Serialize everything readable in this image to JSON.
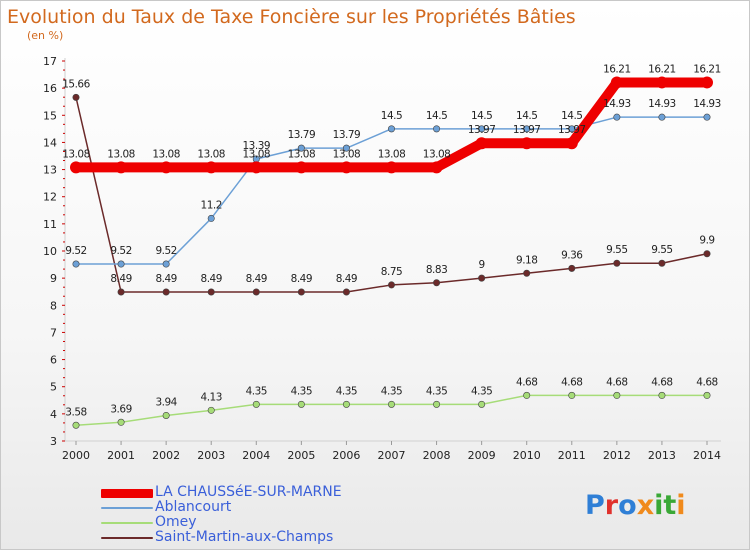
{
  "header": {
    "title": "Evolution du Taux de Taxe Foncière sur les Propriétés Bâties",
    "unit": "(en %)"
  },
  "logo": {
    "letters": [
      "P",
      "r",
      "o",
      "x",
      "i",
      "t",
      "i"
    ],
    "colors": [
      "#2f7fd6",
      "#e0312c",
      "#2f7fd6",
      "#f08a1c",
      "#3aa836",
      "#3aa836",
      "#f08a1c"
    ]
  },
  "chart_data": {
    "type": "line",
    "title": "Evolution du Taux de Taxe Foncière sur les Propriétés Bâties",
    "ylabel": "(en %)",
    "xlabel": "",
    "ylim": [
      3,
      17
    ],
    "yticks": [
      3,
      4,
      5,
      6,
      7,
      8,
      9,
      10,
      11,
      12,
      13,
      14,
      15,
      16,
      17
    ],
    "categories": [
      "2000",
      "2001",
      "2002",
      "2003",
      "2004",
      "2005",
      "2006",
      "2007",
      "2008",
      "2009",
      "2010",
      "2011",
      "2012",
      "2013",
      "2014"
    ],
    "legend_position": "bottom-left",
    "grid": false,
    "series": [
      {
        "name": "LA CHAUSSéE-SUR-MARNE",
        "color": "#ee0000",
        "values": [
          13.08,
          13.08,
          13.08,
          13.08,
          13.08,
          13.08,
          13.08,
          13.08,
          13.08,
          13.97,
          13.97,
          13.97,
          16.21,
          16.21,
          16.21
        ],
        "labels": [
          "13.08",
          "13.08",
          "13.08",
          "13.08",
          "13.08",
          "13.08",
          "13.08",
          "13.08",
          "13.08",
          "13.97",
          "13.97",
          "13.97",
          "16.21",
          "16.21",
          "16.21"
        ]
      },
      {
        "name": "Ablancourt",
        "color": "#6ca0d6",
        "values": [
          9.52,
          9.52,
          9.52,
          11.2,
          13.39,
          13.79,
          13.79,
          14.5,
          14.5,
          14.5,
          14.5,
          14.5,
          14.93,
          14.93,
          14.93
        ],
        "labels": [
          "9.52",
          "9.52",
          "9.52",
          "11.2",
          "13.39",
          "13.79",
          "13.79",
          "14.5",
          "14.5",
          "14.5",
          "14.5",
          "14.5",
          "14.93",
          "14.93",
          "14.93"
        ]
      },
      {
        "name": "Omey",
        "color": "#a6dc78",
        "values": [
          3.58,
          3.69,
          3.94,
          4.13,
          4.35,
          4.35,
          4.35,
          4.35,
          4.35,
          4.35,
          4.68,
          4.68,
          4.68,
          4.68,
          4.68
        ],
        "labels": [
          "3.58",
          "3.69",
          "3.94",
          "4.13",
          "4.35",
          "4.35",
          "4.35",
          "4.35",
          "4.35",
          "4.35",
          "4.68",
          "4.68",
          "4.68",
          "4.68",
          "4.68"
        ]
      },
      {
        "name": "Saint-Martin-aux-Champs",
        "color": "#6b2a2a",
        "values": [
          15.66,
          8.49,
          8.49,
          8.49,
          8.49,
          8.49,
          8.49,
          8.75,
          8.83,
          9,
          9.18,
          9.36,
          9.55,
          9.55,
          9.9
        ],
        "labels": [
          "15.66",
          "8.49",
          "8.49",
          "8.49",
          "8.49",
          "8.49",
          "8.49",
          "8.75",
          "8.83",
          "9",
          "9.18",
          "9.36",
          "9.55",
          "9.55",
          "9.9"
        ]
      }
    ]
  }
}
